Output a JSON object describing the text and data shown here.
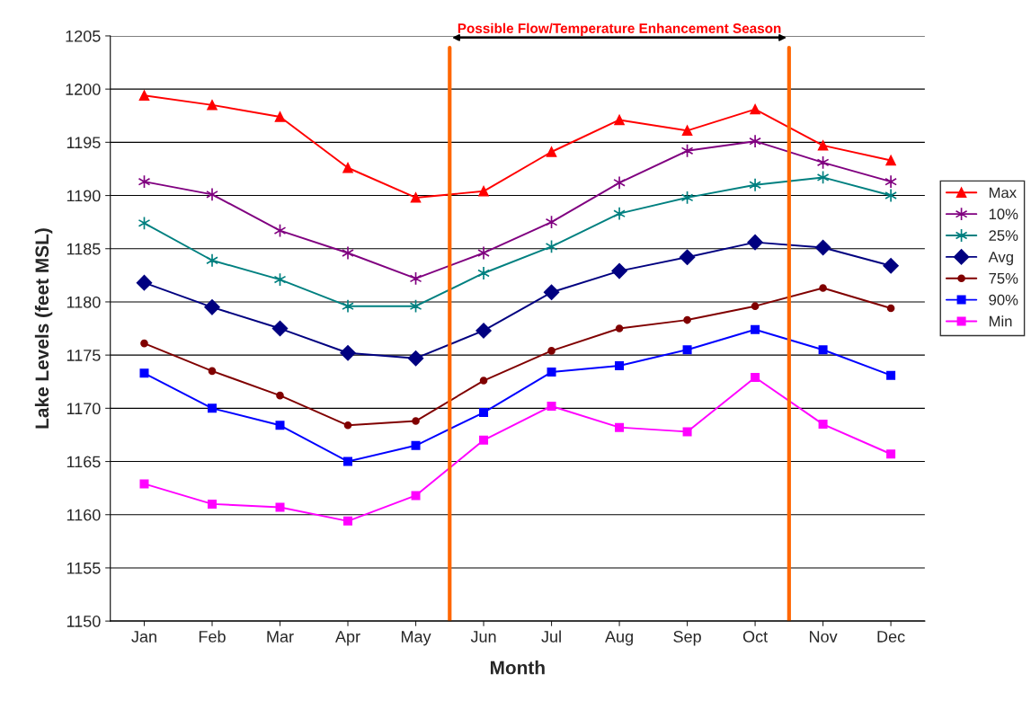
{
  "chart_data": {
    "type": "line",
    "xlabel": "Month",
    "ylabel": "Lake Levels (feet MSL)",
    "categories": [
      "Jan",
      "Feb",
      "Mar",
      "Apr",
      "May",
      "Jun",
      "Jul",
      "Aug",
      "Sep",
      "Oct",
      "Nov",
      "Dec"
    ],
    "ylim": [
      1150,
      1205
    ],
    "yticks": [
      1150,
      1155,
      1160,
      1165,
      1170,
      1175,
      1180,
      1185,
      1190,
      1195,
      1200,
      1205
    ],
    "grid": "y",
    "legend": "right",
    "series": [
      {
        "name": "Max",
        "color": "#ff0000",
        "marker": "triangle",
        "values": [
          1199.4,
          1198.5,
          1197.4,
          1192.6,
          1189.8,
          1190.4,
          1194.1,
          1197.1,
          1196.1,
          1198.1,
          1194.7,
          1193.3
        ]
      },
      {
        "name": "10%",
        "color": "#800080",
        "marker": "cross",
        "values": [
          1191.3,
          1190.1,
          1186.7,
          1184.6,
          1182.2,
          1184.6,
          1187.5,
          1191.2,
          1194.2,
          1195.1,
          1193.1,
          1191.3
        ]
      },
      {
        "name": "25%",
        "color": "#008080",
        "marker": "cross",
        "values": [
          1187.4,
          1183.9,
          1182.1,
          1179.6,
          1179.6,
          1182.7,
          1185.2,
          1188.3,
          1189.8,
          1191.0,
          1191.7,
          1190.0
        ]
      },
      {
        "name": "Avg",
        "color": "#000080",
        "marker": "diamond",
        "values": [
          1181.8,
          1179.5,
          1177.5,
          1175.2,
          1174.7,
          1177.3,
          1180.9,
          1182.9,
          1184.2,
          1185.6,
          1185.1,
          1183.4
        ]
      },
      {
        "name": "75%",
        "color": "#800000",
        "marker": "circle",
        "values": [
          1176.1,
          1173.5,
          1171.2,
          1168.4,
          1168.8,
          1172.6,
          1175.4,
          1177.5,
          1178.3,
          1179.6,
          1181.3,
          1179.4
        ]
      },
      {
        "name": "90%",
        "color": "#0000ff",
        "marker": "square",
        "values": [
          1173.3,
          1170.0,
          1168.4,
          1165.0,
          1166.5,
          1169.6,
          1173.4,
          1174.0,
          1175.5,
          1177.4,
          1175.5,
          1173.1
        ]
      },
      {
        "name": "Min",
        "color": "#ff00ff",
        "marker": "square",
        "values": [
          1162.9,
          1161.0,
          1160.7,
          1159.4,
          1161.8,
          1167.0,
          1170.2,
          1168.2,
          1167.8,
          1172.9,
          1168.5,
          1165.7
        ]
      }
    ],
    "annotations": [
      "Possible Flow/Temperature Enhancement Season"
    ]
  }
}
